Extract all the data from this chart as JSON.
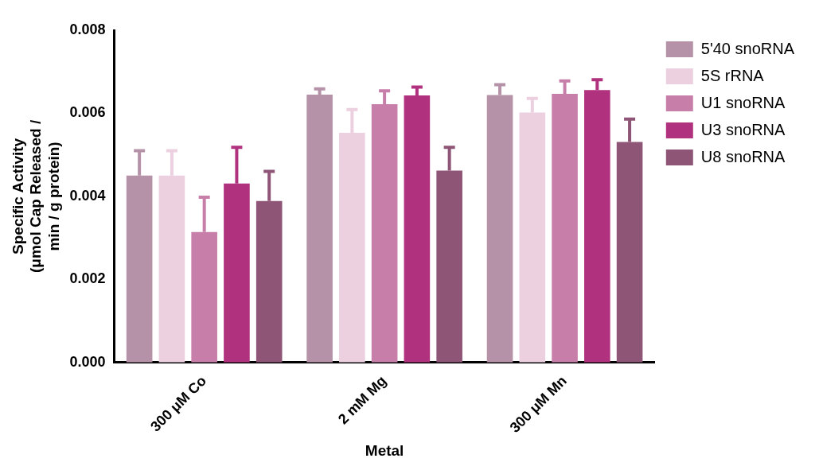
{
  "chart_data": {
    "type": "bar",
    "xlabel": "Metal",
    "ylabel": "Specific Activity (μmol Cap Released / min / g protein)",
    "categories": [
      "300 μM Co",
      "2 mM Mg",
      "300 μM Mn"
    ],
    "series": [
      {
        "name": "5'40 snoRNA",
        "color": "#b592a8",
        "values": [
          0.0045,
          0.00645,
          0.00644
        ],
        "errors": [
          [
            0.0045,
            0.0051
          ],
          [
            0.00645,
            0.00659
          ],
          [
            0.00644,
            0.00669
          ]
        ]
      },
      {
        "name": "5S rRNA",
        "color": "#ecd0e0",
        "values": [
          0.0045,
          0.00553,
          0.00602
        ],
        "errors": [
          [
            0.0045,
            0.0051
          ],
          [
            0.00553,
            0.00609
          ],
          [
            0.00602,
            0.00636
          ]
        ]
      },
      {
        "name": "U1 snoRNA",
        "color": "#c77fa9",
        "values": [
          0.00314,
          0.00622,
          0.00647
        ],
        "errors": [
          [
            0.00314,
            0.00398
          ],
          [
            0.00622,
            0.00654
          ],
          [
            0.00647,
            0.00678
          ]
        ]
      },
      {
        "name": "U3 snoRNA",
        "color": "#b0317e",
        "values": [
          0.00431,
          0.00643,
          0.00656
        ],
        "errors": [
          [
            0.00431,
            0.00518
          ],
          [
            0.00643,
            0.00663
          ],
          [
            0.00656,
            0.00681
          ]
        ]
      },
      {
        "name": "U8 snoRNA",
        "color": "#8e5577",
        "values": [
          0.00389,
          0.00462,
          0.00531
        ],
        "errors": [
          [
            0.00389,
            0.0046
          ],
          [
            0.00462,
            0.00518
          ],
          [
            0.00531,
            0.00586
          ]
        ]
      }
    ],
    "ylim": [
      0,
      0.008
    ],
    "yticks": [
      {
        "value": 0,
        "label": "0.000"
      },
      {
        "value": 0.002,
        "label": "0.002"
      },
      {
        "value": 0.004,
        "label": "0.004"
      },
      {
        "value": 0.006,
        "label": "0.006"
      },
      {
        "value": 0.008,
        "label": "0.008"
      }
    ],
    "grid": false,
    "legend": "top right"
  }
}
